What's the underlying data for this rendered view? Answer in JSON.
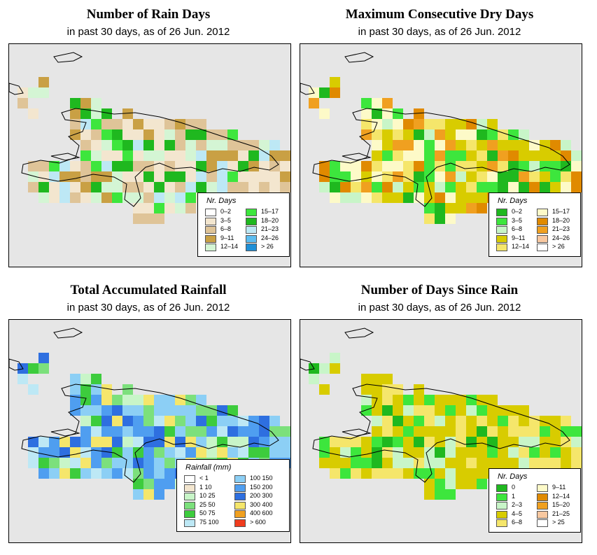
{
  "panels": [
    {
      "title": "Number of Rain Days",
      "subtitle": "in past 30 days, as of  26 Jun. 2012",
      "legend_title": "Nr. Days",
      "legend_items": [
        {
          "label": "0–2",
          "color": "#ffffff"
        },
        {
          "label": "3–5",
          "color": "#f3e6cf"
        },
        {
          "label": "6–8",
          "color": "#dfc498"
        },
        {
          "label": "9–11",
          "color": "#c9a044"
        },
        {
          "label": "12–14",
          "color": "#d4f5d4"
        },
        {
          "label": "15–17",
          "color": "#3de63d"
        },
        {
          "label": "18–20",
          "color": "#1fb81f"
        },
        {
          "label": "21–23",
          "color": "#bde8f5"
        },
        {
          "label": "24–26",
          "color": "#5cbdf0"
        },
        {
          "label": "> 26",
          "color": "#1f8fd6"
        }
      ],
      "palette_note": "cells use legend colours"
    },
    {
      "title": "Maximum Consecutive Dry Days",
      "subtitle": "in past 30 days, as of  26 Jun. 2012",
      "legend_title": "Nr. Days",
      "legend_items": [
        {
          "label": "0–2",
          "color": "#1fb81f"
        },
        {
          "label": "3–5",
          "color": "#3de63d"
        },
        {
          "label": "6–8",
          "color": "#c8f5c8"
        },
        {
          "label": "9–11",
          "color": "#d8cc00"
        },
        {
          "label": "12–14",
          "color": "#f5e66b"
        },
        {
          "label": "15–17",
          "color": "#fdfac8"
        },
        {
          "label": "18–20",
          "color": "#e08a00"
        },
        {
          "label": "21–23",
          "color": "#f0a020"
        },
        {
          "label": "24–26",
          "color": "#f8c8a0"
        },
        {
          "label": "> 26",
          "color": "#ffffff"
        }
      ]
    },
    {
      "title": "Total Accumulated Rainfall",
      "subtitle": "in past 30 days, as of  26 Jun. 2012",
      "legend_title": "Rainfall (mm)",
      "legend_items": [
        {
          "label": "< 1",
          "color": "#ffffff"
        },
        {
          "label": "1    10",
          "color": "#f3e6cf"
        },
        {
          "label": "10    25",
          "color": "#c8f5c8"
        },
        {
          "label": "25    50",
          "color": "#7ce07c"
        },
        {
          "label": "50    75",
          "color": "#3dcc3d"
        },
        {
          "label": "75   100",
          "color": "#bde8f5"
        },
        {
          "label": "100   150",
          "color": "#8ccff5"
        },
        {
          "label": "150   200",
          "color": "#4f9ef0"
        },
        {
          "label": "200   300",
          "color": "#2e6fe0"
        },
        {
          "label": "300   400",
          "color": "#f5e66b"
        },
        {
          "label": "400   600",
          "color": "#f0a020"
        },
        {
          "label": "> 600",
          "color": "#f03c1e"
        }
      ]
    },
    {
      "title": "Number of Days Since Rain",
      "subtitle": "in past 30 days, as of  26 Jun. 2012",
      "legend_title": "Nr. Days",
      "legend_items": [
        {
          "label": "0",
          "color": "#1fb81f"
        },
        {
          "label": "1",
          "color": "#3de63d"
        },
        {
          "label": "2–3",
          "color": "#c8f5c8"
        },
        {
          "label": "4–5",
          "color": "#d8cc00"
        },
        {
          "label": "6–8",
          "color": "#f5e66b"
        },
        {
          "label": "9–11",
          "color": "#fdfac8"
        },
        {
          "label": "12–14",
          "color": "#e08a00"
        },
        {
          "label": "15–20",
          "color": "#f0a020"
        },
        {
          "label": "21–25",
          "color": "#f8c8a0"
        },
        {
          "label": "> 25",
          "color": "#ffffff"
        }
      ]
    }
  ]
}
